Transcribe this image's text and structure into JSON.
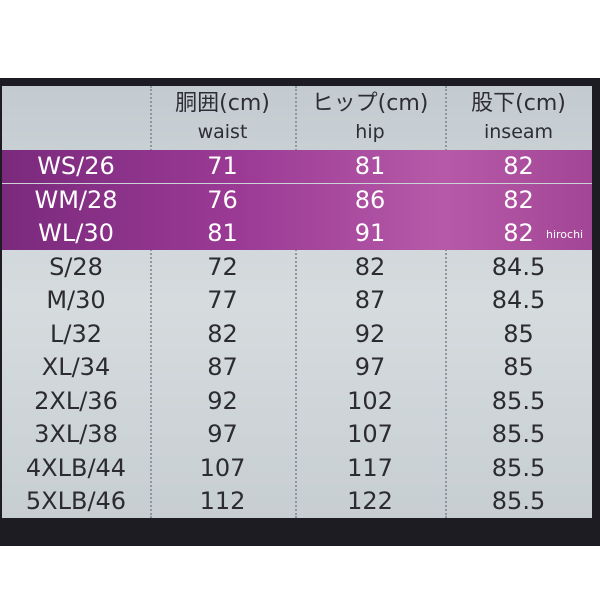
{
  "table": {
    "header": [
      [
        "胴囲(cm)",
        "waist"
      ],
      [
        "ヒップ(cm)",
        "hip"
      ],
      [
        "股下(cm)",
        "inseam"
      ]
    ],
    "rows": [
      [
        "WS/26",
        71,
        81,
        82
      ],
      [
        "WM/28",
        76,
        86,
        82
      ],
      [
        "WL/30",
        81,
        91,
        82
      ],
      [
        "S/28",
        72,
        82,
        84.5
      ],
      [
        "M/30",
        77,
        87,
        84.5
      ],
      [
        "L/32",
        82,
        92,
        85
      ],
      [
        "XL/34",
        87,
        97,
        85
      ],
      [
        "2XL/36",
        92,
        102,
        85.5
      ],
      [
        "3XL/38",
        97,
        107,
        85.5
      ],
      [
        "4XLB/44",
        107,
        117,
        85.5
      ],
      [
        "5XLB/46",
        112,
        122,
        85.5
      ]
    ]
  },
  "watermark": "hirochi"
}
